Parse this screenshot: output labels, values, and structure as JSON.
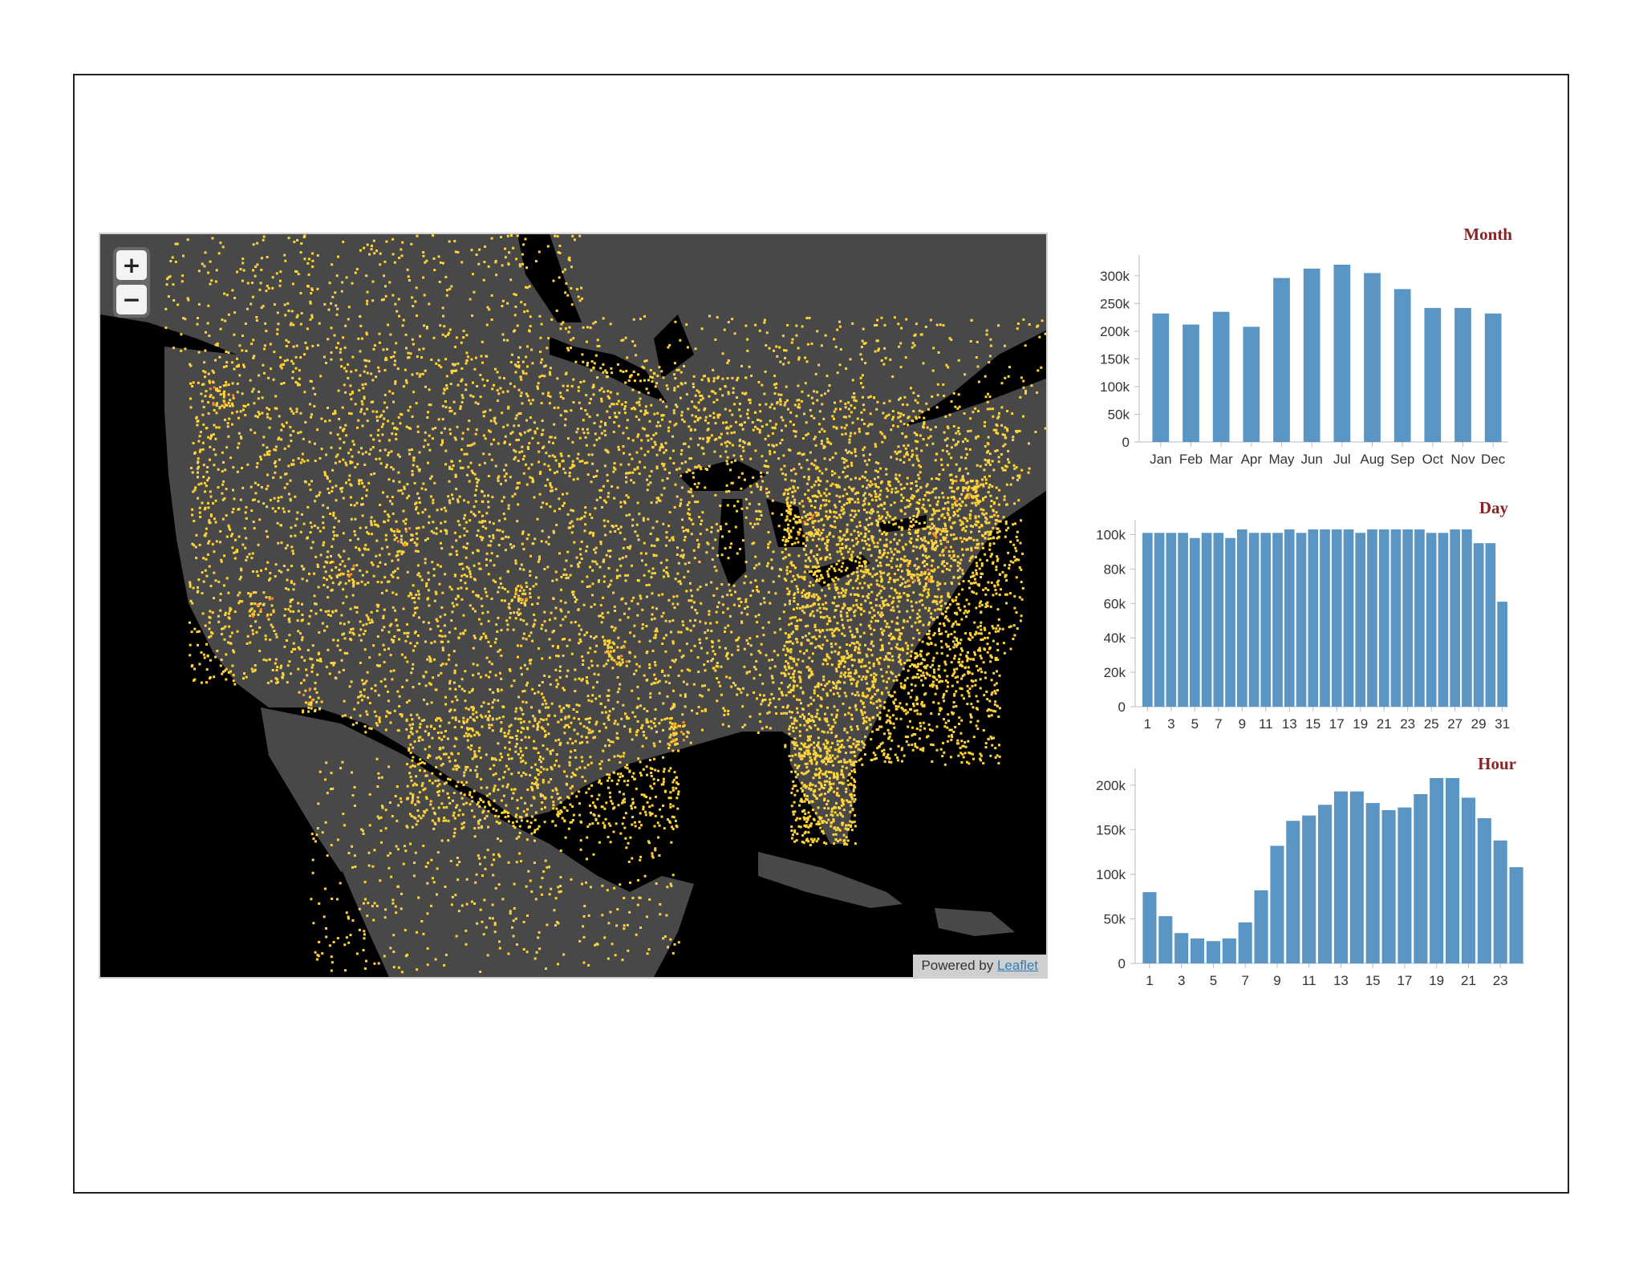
{
  "map": {
    "zoom_in_label": "+",
    "zoom_out_label": "−",
    "attribution_prefix": "Powered by",
    "attribution_link": "Leaflet",
    "colors": {
      "water": "#000000",
      "land": "#484848",
      "points": "#ffd43a",
      "hot": "#ff8a2a"
    }
  },
  "charts": {
    "month": {
      "title": "Month"
    },
    "day": {
      "title": "Day"
    },
    "hour": {
      "title": "Hour"
    }
  },
  "chart_data": [
    {
      "type": "bar",
      "title": "Month",
      "categories": [
        "Jan",
        "Feb",
        "Mar",
        "Apr",
        "May",
        "Jun",
        "Jul",
        "Aug",
        "Sep",
        "Oct",
        "Nov",
        "Dec"
      ],
      "values": [
        232000,
        212000,
        235000,
        208000,
        296000,
        313000,
        320000,
        305000,
        276000,
        242000,
        242000,
        232000
      ],
      "yticks": [
        0,
        50000,
        100000,
        150000,
        200000,
        250000,
        300000
      ],
      "ytick_labels": [
        "0",
        "50k",
        "100k",
        "150k",
        "200k",
        "250k",
        "300k"
      ],
      "ylim": [
        0,
        320000
      ],
      "color": "#5b95c3"
    },
    {
      "type": "bar",
      "title": "Day",
      "categories": [
        "1",
        "2",
        "3",
        "4",
        "5",
        "6",
        "7",
        "8",
        "9",
        "10",
        "11",
        "12",
        "13",
        "14",
        "15",
        "16",
        "17",
        "18",
        "19",
        "20",
        "21",
        "22",
        "23",
        "24",
        "25",
        "26",
        "27",
        "28",
        "29",
        "30",
        "31"
      ],
      "xtick_labels": [
        "1",
        "3",
        "5",
        "7",
        "9",
        "11",
        "13",
        "15",
        "17",
        "19",
        "21",
        "23",
        "25",
        "27",
        "29",
        "31"
      ],
      "values": [
        101000,
        101000,
        101000,
        101000,
        98000,
        101000,
        101000,
        98000,
        103000,
        101000,
        101000,
        101000,
        103000,
        101000,
        103000,
        103000,
        103000,
        103000,
        101000,
        103000,
        103000,
        103000,
        103000,
        103000,
        101000,
        101000,
        103000,
        103000,
        95000,
        95000,
        61000
      ],
      "yticks": [
        0,
        20000,
        40000,
        60000,
        80000,
        100000
      ],
      "ytick_labels": [
        "0",
        "20k",
        "40k",
        "60k",
        "80k",
        "100k"
      ],
      "ylim": [
        0,
        103000
      ],
      "color": "#5b95c3"
    },
    {
      "type": "bar",
      "title": "Hour",
      "categories": [
        "1",
        "2",
        "3",
        "4",
        "5",
        "6",
        "7",
        "8",
        "9",
        "10",
        "11",
        "12",
        "13",
        "14",
        "15",
        "16",
        "17",
        "18",
        "19",
        "20",
        "21",
        "22",
        "23",
        "24"
      ],
      "xtick_labels": [
        "1",
        "3",
        "5",
        "7",
        "9",
        "11",
        "13",
        "15",
        "17",
        "19",
        "21",
        "23"
      ],
      "values": [
        80000,
        53000,
        34000,
        28000,
        25000,
        28000,
        46000,
        82000,
        132000,
        160000,
        166000,
        178000,
        193000,
        193000,
        180000,
        172000,
        175000,
        190000,
        208000,
        208000,
        186000,
        163000,
        138000,
        108000
      ],
      "yticks": [
        0,
        50000,
        100000,
        150000,
        200000
      ],
      "ytick_labels": [
        "0",
        "50k",
        "100k",
        "150k",
        "200k"
      ],
      "ylim": [
        0,
        208000
      ],
      "color": "#5b95c3"
    }
  ]
}
